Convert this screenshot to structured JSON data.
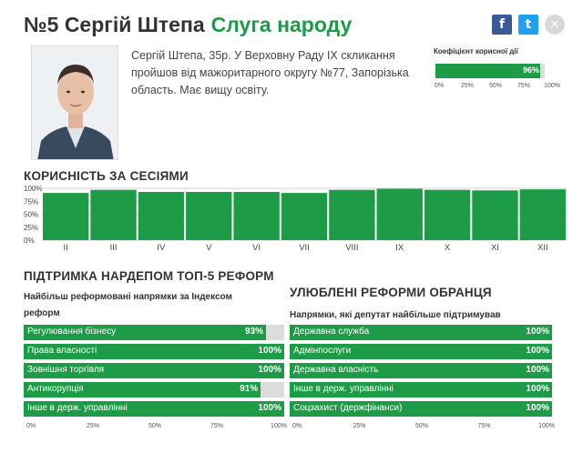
{
  "header": {
    "name": "№5 Сергій Штепа",
    "party": "Слуга народу"
  },
  "social": {
    "facebook": "f",
    "twitter": "t",
    "close": "✕"
  },
  "bio": "Сергій Штепа, 35р. У Верховну Раду IX скликання пройшов від мажоритарного округу №77, Запорізька область. Має вищу освіту.",
  "efficiency": {
    "label": "Коефіцієнт корисної дії",
    "value": 96,
    "value_label": "96%",
    "ticks": [
      "0%",
      "25%",
      "50%",
      "75%",
      "100%"
    ]
  },
  "sessions_title": "КОРИСНІСТЬ ЗА СЕСІЯМИ",
  "chart_data": {
    "type": "bar",
    "categories": [
      "II",
      "III",
      "IV",
      "V",
      "VI",
      "VII",
      "VIII",
      "IX",
      "X",
      "XI",
      "XII"
    ],
    "values": [
      91,
      97,
      93,
      93,
      93,
      91,
      97,
      99,
      97,
      96,
      98
    ],
    "yticks": [
      "100%",
      "75%",
      "50%",
      "25%",
      "0%"
    ],
    "ylim": [
      0,
      100
    ],
    "color": "#1e9b47"
  },
  "top5": {
    "title": "ПІДТРИМКА НАРДЕПОМ ТОП-5 РЕФОРМ",
    "subtitle": "Найбільш реформовані напрямки за Індексом реформ",
    "items": [
      {
        "label": "Регулювання бізнесу",
        "value": 93,
        "value_label": "93%"
      },
      {
        "label": "Права власності",
        "value": 100,
        "value_label": "100%"
      },
      {
        "label": "Зовнішня торгівля",
        "value": 100,
        "value_label": "100%"
      },
      {
        "label": "Антикорупція",
        "value": 91,
        "value_label": "91%"
      },
      {
        "label": "Інше в держ. управлінні",
        "value": 100,
        "value_label": "100%"
      }
    ],
    "ticks": [
      "0%",
      "25%",
      "50%",
      "75%",
      "100%"
    ]
  },
  "favorite": {
    "title": "УЛЮБЛЕНІ РЕФОРМИ ОБРАНЦЯ",
    "subtitle": "Напрямки, які депутат найбільше підтримував",
    "items": [
      {
        "label": "Державна служба",
        "value": 100,
        "value_label": "100%"
      },
      {
        "label": "Адмінпослуги",
        "value": 100,
        "value_label": "100%"
      },
      {
        "label": "Державна власність",
        "value": 100,
        "value_label": "100%"
      },
      {
        "label": "Інше в держ. управлінні",
        "value": 100,
        "value_label": "100%"
      },
      {
        "label": "Соцзахист (держфінанси)",
        "value": 100,
        "value_label": "100%"
      }
    ],
    "ticks": [
      "0%",
      "25%",
      "50%",
      "75%",
      "100%"
    ]
  }
}
